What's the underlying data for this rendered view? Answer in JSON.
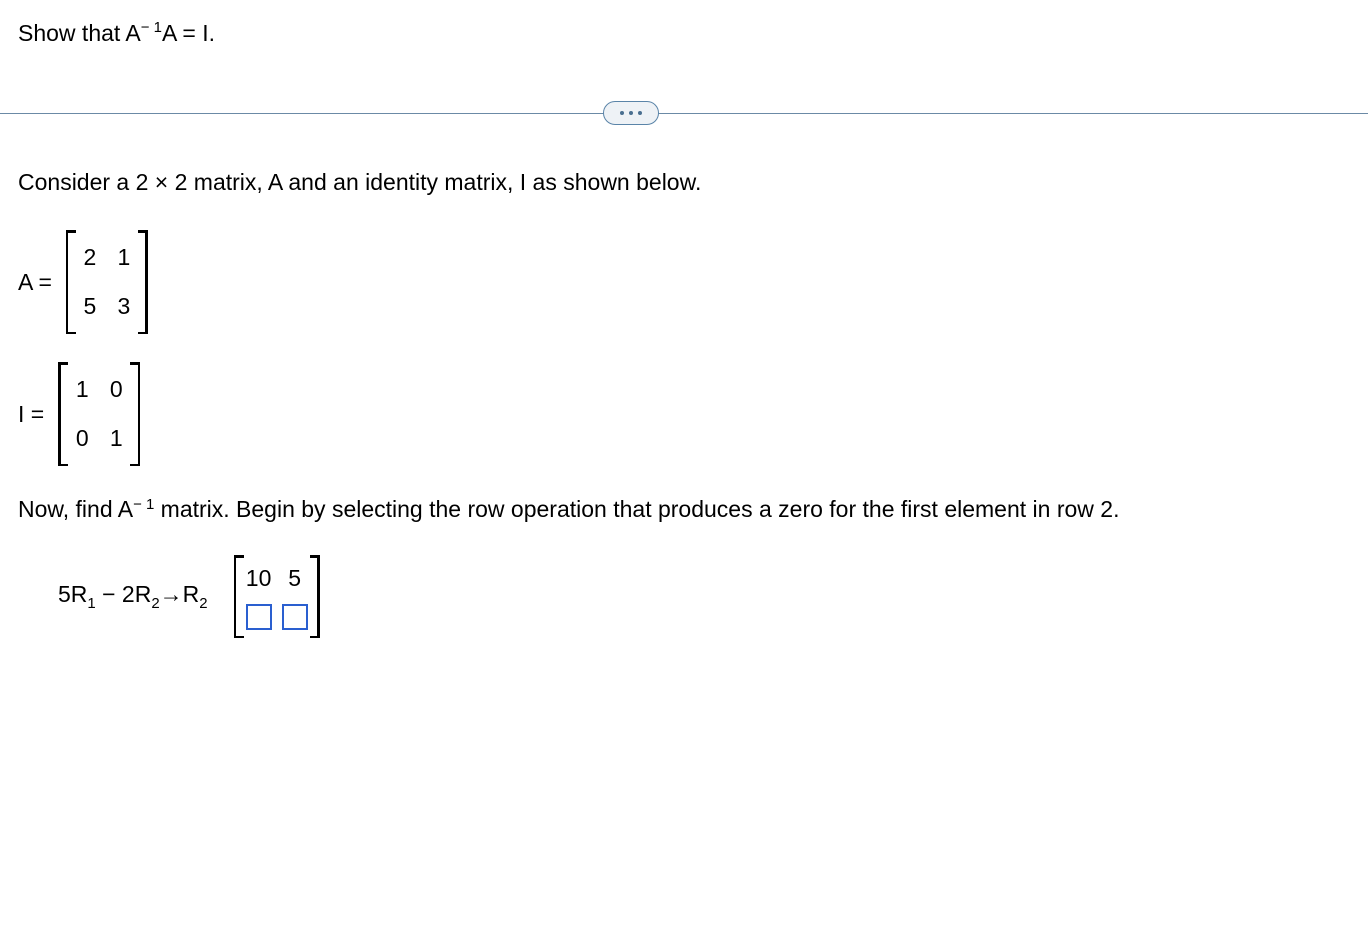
{
  "prompt": {
    "prefix": "Show that A",
    "sup": "− 1",
    "suffix": "A = I."
  },
  "intro": "Consider a 2 × 2 matrix, A and an identity matrix, I as shown below.",
  "matrixA": {
    "label": "A =",
    "rows": [
      [
        "2",
        "1"
      ],
      [
        "5",
        "3"
      ]
    ]
  },
  "matrixI": {
    "label": "I =",
    "rows": [
      [
        "1",
        "0"
      ],
      [
        "0",
        "1"
      ]
    ]
  },
  "findLine": {
    "prefix": "Now, find A",
    "sup": "− 1",
    "suffix": " matrix. Begin by selecting the row operation that produces a zero for the first element in row 2."
  },
  "rowOp": {
    "text_parts": {
      "c1": "5R",
      "s1": "1",
      "mid": " − 2R",
      "s2": "2",
      "arrow": "→R",
      "s3": "2"
    },
    "resultTop": [
      "10",
      "5"
    ]
  },
  "colors": {
    "input_border": "#2a5fd0",
    "divider": "#6b8aa6",
    "pill_bg": "#eef2f6",
    "pill_border": "#5a84a8"
  }
}
